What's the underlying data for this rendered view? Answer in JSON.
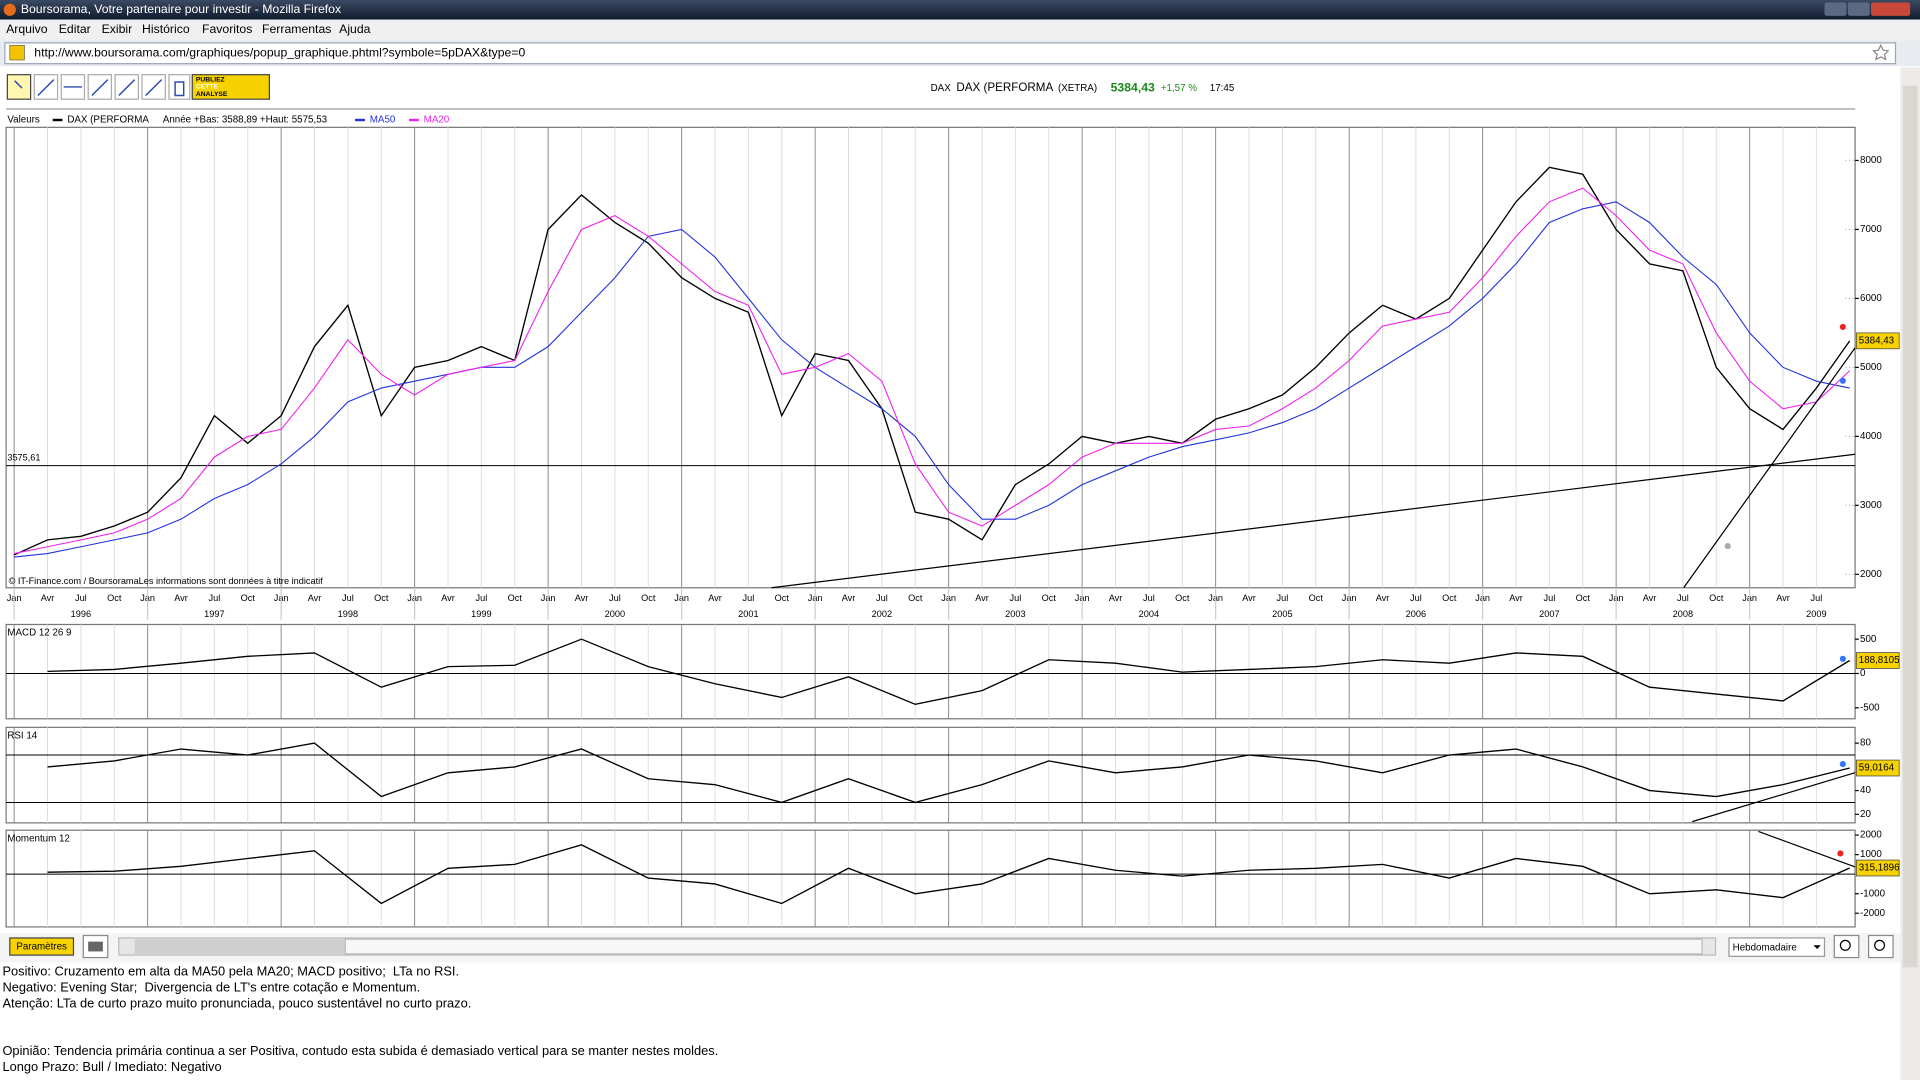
{
  "browser": {
    "title": "Boursorama, Votre partenaire pour investir - Mozilla Firefox",
    "menu": [
      "Arquivo",
      "Editar",
      "Exibir",
      "Histórico",
      "Favoritos",
      "Ferramentas",
      "Ajuda"
    ],
    "url": "http://www.boursorama.com/graphiques/popup_graphique.phtml?symbole=5pDAX&type=0"
  },
  "toolbar": {
    "ad": [
      "PUBLIEZ",
      "CETTE",
      "ANALYSE"
    ]
  },
  "quote": {
    "code": "DAX",
    "name": "DAX (PERFORMA",
    "market": "(XETRA)",
    "price": "5384,43",
    "change": "+1,57 %",
    "time": "17:45"
  },
  "controls": {
    "params": "Paramètres",
    "period": "Hebdomadaire"
  },
  "notes": [
    "Positivo: Cruzamento em alta da MA50 pela MA20; MACD positivo;  LTa no RSI.",
    "Negativo: Evening Star;  Divergencia de LT's entre cotação e Momentum.",
    "Atenção: LTa de curto prazo muito pronunciada, pouco sustentável no curto prazo.",
    "Opinião: Tendencia primária continua a ser Positiva, contudo esta subida é demasiado vertical para se manter nestes moldes.",
    "Longo Prazo: Bull / Imediato: Negativo"
  ],
  "chart_data": [
    {
      "type": "line",
      "legend_title": "Valeurs",
      "legend_note": "Année +Bas: 3588,89 +Haut: 5575,53",
      "source": "© IT-Finance.com / BoursoramaLes informations sont données à titre indicatif",
      "x": [
        1996,
        1996.25,
        1996.5,
        1996.75,
        1997,
        1997.25,
        1997.5,
        1997.75,
        1998,
        1998.25,
        1998.5,
        1998.75,
        1999,
        1999.25,
        1999.5,
        1999.75,
        2000,
        2000.25,
        2000.5,
        2000.75,
        2001,
        2001.25,
        2001.5,
        2001.75,
        2002,
        2002.25,
        2002.5,
        2002.75,
        2003,
        2003.25,
        2003.5,
        2003.75,
        2004,
        2004.25,
        2004.5,
        2004.75,
        2005,
        2005.25,
        2005.5,
        2005.75,
        2006,
        2006.25,
        2006.5,
        2006.75,
        2007,
        2007.25,
        2007.5,
        2007.75,
        2008,
        2008.25,
        2008.5,
        2008.75,
        2009,
        2009.25,
        2009.5,
        2009.75
      ],
      "series": [
        {
          "name": "DAX (PERFORMA",
          "color": "#000000",
          "values": [
            2280,
            2500,
            2550,
            2700,
            2900,
            3400,
            4300,
            3900,
            4300,
            5300,
            5900,
            4300,
            5000,
            5100,
            5300,
            5100,
            7000,
            7500,
            7100,
            6800,
            6300,
            6000,
            5800,
            4300,
            5200,
            5100,
            4400,
            2900,
            2800,
            2500,
            3300,
            3600,
            4000,
            3900,
            4000,
            3900,
            4250,
            4400,
            4600,
            5000,
            5500,
            5900,
            5700,
            6000,
            6700,
            7400,
            7900,
            7800,
            7000,
            6500,
            6400,
            5000,
            4400,
            4100,
            4700,
            5384.43
          ]
        },
        {
          "name": "MA50",
          "color": "#2233dd",
          "values": [
            2250,
            2300,
            2400,
            2500,
            2600,
            2800,
            3100,
            3300,
            3600,
            4000,
            4500,
            4700,
            4800,
            4900,
            5000,
            5000,
            5300,
            5800,
            6300,
            6900,
            7000,
            6600,
            6000,
            5400,
            5000,
            4700,
            4400,
            4000,
            3300,
            2800,
            2800,
            3000,
            3300,
            3500,
            3700,
            3850,
            3950,
            4050,
            4200,
            4400,
            4700,
            5000,
            5300,
            5600,
            6000,
            6500,
            7100,
            7300,
            7400,
            7100,
            6600,
            6200,
            5500,
            5000,
            4800,
            4700
          ]
        },
        {
          "name": "MA20",
          "color": "#ee22ee",
          "values": [
            2300,
            2400,
            2500,
            2600,
            2800,
            3100,
            3700,
            4000,
            4100,
            4700,
            5400,
            4900,
            4600,
            4900,
            5000,
            5100,
            6100,
            7000,
            7200,
            6900,
            6500,
            6100,
            5900,
            4900,
            5000,
            5200,
            4800,
            3600,
            2900,
            2700,
            3000,
            3300,
            3700,
            3900,
            3900,
            3900,
            4100,
            4150,
            4400,
            4700,
            5100,
            5600,
            5700,
            5800,
            6300,
            6900,
            7400,
            7600,
            7200,
            6700,
            6500,
            5500,
            4800,
            4400,
            4500,
            4950
          ]
        }
      ],
      "xlim": [
        1995.94,
        2009.79
      ],
      "ylim": [
        1805,
        8480
      ],
      "yticks": [
        2000,
        3000,
        4000,
        5000,
        6000,
        7000,
        8000
      ],
      "xticks": [
        {
          "value": 1996,
          "label": "Jan"
        },
        {
          "value": 1996.25,
          "label": "Avr"
        },
        {
          "value": 1996.5,
          "label": "Jul"
        },
        {
          "value": 1996.75,
          "label": "Oct"
        },
        {
          "value": 1997,
          "label": "Jan"
        },
        {
          "value": 1997.25,
          "label": "Avr"
        },
        {
          "value": 1997.5,
          "label": "Jul"
        },
        {
          "value": 1997.75,
          "label": "Oct"
        },
        {
          "value": 1998,
          "label": "Jan"
        },
        {
          "value": 1998.25,
          "label": "Avr"
        },
        {
          "value": 1998.5,
          "label": "Jul"
        },
        {
          "value": 1998.75,
          "label": "Oct"
        },
        {
          "value": 1999,
          "label": "Jan"
        },
        {
          "value": 1999.25,
          "label": "Avr"
        },
        {
          "value": 1999.5,
          "label": "Jul"
        },
        {
          "value": 1999.75,
          "label": "Oct"
        },
        {
          "value": 2000,
          "label": "Jan"
        },
        {
          "value": 2000.25,
          "label": "Avr"
        },
        {
          "value": 2000.5,
          "label": "Jul"
        },
        {
          "value": 2000.75,
          "label": "Oct"
        },
        {
          "value": 2001,
          "label": "Jan"
        },
        {
          "value": 2001.25,
          "label": "Avr"
        },
        {
          "value": 2001.5,
          "label": "Jul"
        },
        {
          "value": 2001.75,
          "label": "Oct"
        },
        {
          "value": 2002,
          "label": "Jan"
        },
        {
          "value": 2002.25,
          "label": "Avr"
        },
        {
          "value": 2002.5,
          "label": "Jul"
        },
        {
          "value": 2002.75,
          "label": "Oct"
        },
        {
          "value": 2003,
          "label": "Jan"
        },
        {
          "value": 2003.25,
          "label": "Avr"
        },
        {
          "value": 2003.5,
          "label": "Jul"
        },
        {
          "value": 2003.75,
          "label": "Oct"
        },
        {
          "value": 2004,
          "label": "Jan"
        },
        {
          "value": 2004.25,
          "label": "Avr"
        },
        {
          "value": 2004.5,
          "label": "Jul"
        },
        {
          "value": 2004.75,
          "label": "Oct"
        },
        {
          "value": 2005,
          "label": "Jan"
        },
        {
          "value": 2005.25,
          "label": "Avr"
        },
        {
          "value": 2005.5,
          "label": "Jul"
        },
        {
          "value": 2005.75,
          "label": "Oct"
        },
        {
          "value": 2006,
          "label": "Jan"
        },
        {
          "value": 2006.25,
          "label": "Avr"
        },
        {
          "value": 2006.5,
          "label": "Jul"
        },
        {
          "value": 2006.75,
          "label": "Oct"
        },
        {
          "value": 2007,
          "label": "Jan"
        },
        {
          "value": 2007.25,
          "label": "Avr"
        },
        {
          "value": 2007.5,
          "label": "Jul"
        },
        {
          "value": 2007.75,
          "label": "Oct"
        },
        {
          "value": 2008,
          "label": "Jan"
        },
        {
          "value": 2008.25,
          "label": "Avr"
        },
        {
          "value": 2008.5,
          "label": "Jul"
        },
        {
          "value": 2008.75,
          "label": "Oct"
        },
        {
          "value": 2009,
          "label": "Jan"
        },
        {
          "value": 2009.25,
          "label": "Avr"
        },
        {
          "value": 2009.5,
          "label": "Jul"
        }
      ],
      "year_ticks": [
        1996,
        1997,
        1998,
        1999,
        2000,
        2001,
        2002,
        2003,
        2004,
        2005,
        2006,
        2007,
        2008,
        2009
      ],
      "hline": {
        "value": 3575.61,
        "label": "3575,61"
      },
      "last_value": {
        "value": 5384.43,
        "label": "5384,43"
      },
      "grid": true
    },
    {
      "type": "line",
      "title": "MACD 12 26 9",
      "x": [
        1996.25,
        1996.75,
        1997.25,
        1997.75,
        1998.25,
        1998.75,
        1999.25,
        1999.75,
        2000.25,
        2000.75,
        2001.25,
        2001.75,
        2002.25,
        2002.75,
        2003.25,
        2003.75,
        2004.25,
        2004.75,
        2005.25,
        2005.75,
        2006.25,
        2006.75,
        2007.25,
        2007.75,
        2008.25,
        2008.75,
        2009.25,
        2009.75
      ],
      "series": [
        {
          "color": "#000000",
          "values": [
            30,
            60,
            150,
            250,
            300,
            -200,
            100,
            120,
            500,
            100,
            -150,
            -350,
            -50,
            -450,
            -250,
            200,
            150,
            20,
            60,
            100,
            200,
            150,
            300,
            250,
            -200,
            -300,
            -400,
            188.8105
          ]
        }
      ],
      "xlim": [
        1995.94,
        2009.79
      ],
      "ylim": [
        -660,
        714
      ],
      "yticks": [
        500,
        0,
        -500
      ],
      "hlines": [
        0
      ],
      "last_value": {
        "value": 188.8105,
        "label": "188,8105"
      }
    },
    {
      "type": "line",
      "title": "RSI 14",
      "x": [
        1996.25,
        1996.75,
        1997.25,
        1997.75,
        1998.25,
        1998.75,
        1999.25,
        1999.75,
        2000.25,
        2000.75,
        2001.25,
        2001.75,
        2002.25,
        2002.75,
        2003.25,
        2003.75,
        2004.25,
        2004.75,
        2005.25,
        2005.75,
        2006.25,
        2006.75,
        2007.25,
        2007.75,
        2008.25,
        2008.75,
        2009.25,
        2009.75
      ],
      "series": [
        {
          "color": "#000000",
          "values": [
            60,
            65,
            75,
            70,
            80,
            35,
            55,
            60,
            75,
            50,
            45,
            30,
            50,
            30,
            45,
            65,
            55,
            60,
            70,
            65,
            55,
            70,
            75,
            60,
            40,
            35,
            45,
            59.0164
          ]
        }
      ],
      "xlim": [
        1995.94,
        2009.79
      ],
      "ylim": [
        12.8,
        93.3
      ],
      "yticks": [
        80,
        40,
        20
      ],
      "hlines": [
        30,
        70
      ],
      "last_value": {
        "value": 59.0164,
        "label": "59,0164"
      }
    },
    {
      "type": "line",
      "title": "Momentum 12",
      "x": [
        1996.25,
        1996.75,
        1997.25,
        1997.75,
        1998.25,
        1998.75,
        1999.25,
        1999.75,
        2000.25,
        2000.75,
        2001.25,
        2001.75,
        2002.25,
        2002.75,
        2003.25,
        2003.75,
        2004.25,
        2004.75,
        2005.25,
        2005.75,
        2006.25,
        2006.75,
        2007.25,
        2007.75,
        2008.25,
        2008.75,
        2009.25,
        2009.75
      ],
      "series": [
        {
          "color": "#000000",
          "values": [
            100,
            150,
            400,
            800,
            1200,
            -1500,
            300,
            500,
            1500,
            -200,
            -500,
            -1500,
            300,
            -1000,
            -500,
            800,
            200,
            -100,
            200,
            300,
            500,
            -200,
            800,
            400,
            -1000,
            -800,
            -1200,
            315.1896
          ]
        }
      ],
      "xlim": [
        1995.94,
        2009.79
      ],
      "ylim": [
        -2700,
        2250
      ],
      "yticks": [
        2000,
        1000,
        -1000,
        -2000
      ],
      "hlines": [
        0
      ],
      "last_value": {
        "value": 315.1896,
        "label": "315,1896"
      }
    }
  ]
}
